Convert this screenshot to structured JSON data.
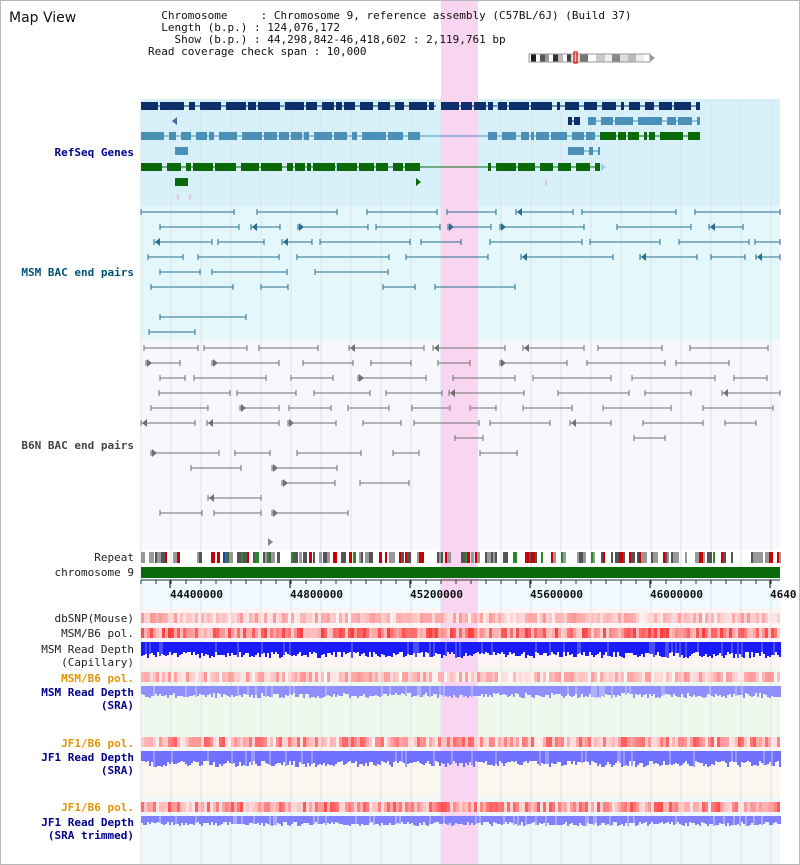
{
  "header": {
    "title": "Map View",
    "info_lines": [
      "  Chromosome     : Chromosome 9, reference assembly (C57BL/6J) (Build 37)",
      "  Length (b.p.) : 124,076,172",
      "    Show (b.p.) : 44,298,842-46,418,602 : 2,119,761 bp",
      "Read coverage check span : 10,000"
    ]
  },
  "tracks": {
    "refseq": "RefSeq Genes",
    "msm_bac": "MSM BAC end pairs",
    "b6n_bac": "B6N BAC end pairs",
    "repeat": "Repeat",
    "chromosome": "chromosome 9",
    "dbsnp": "dbSNP(Mouse)",
    "msm_b6_pol_1": "MSM/B6 pol.",
    "msm_depth_cap_1": "MSM Read Depth",
    "msm_depth_cap_2": "(Capillary)",
    "msm_b6_pol_2": "MSM/B6 pol.",
    "msm_depth_sra_1": "MSM Read Depth",
    "msm_depth_sra_2": "(SRA)",
    "jf1_b6_pol_1": "JF1/B6 pol.",
    "jf1_depth_sra_1": "JF1 Read Depth",
    "jf1_depth_sra_2": "(SRA)",
    "jf1_b6_pol_2": "JF1/B6 pol.",
    "jf1_depth_trim_1": "JF1 Read Depth",
    "jf1_depth_trim_2": "(SRA trimmed)"
  },
  "axis": {
    "ticks": [
      "44400000",
      "44800000",
      "45200000",
      "45600000",
      "46000000",
      "4640"
    ]
  },
  "colors": {
    "refseq_bg": "#d8f0fa",
    "msm_bg": "#e4f8fb",
    "highlight": "#f8d6f2",
    "gene_dark": "#0d2f6b",
    "gene_mid": "#4a90b8",
    "gene_green": "#0a6a0a",
    "bac_msm": "#2a6f8f",
    "bac_b6n": "#707070",
    "chrom": "#0a6a0a",
    "label_blue": "#00008b",
    "label_orange": "#e69500",
    "label_black": "#222222",
    "label_teal": "#005577"
  }
}
